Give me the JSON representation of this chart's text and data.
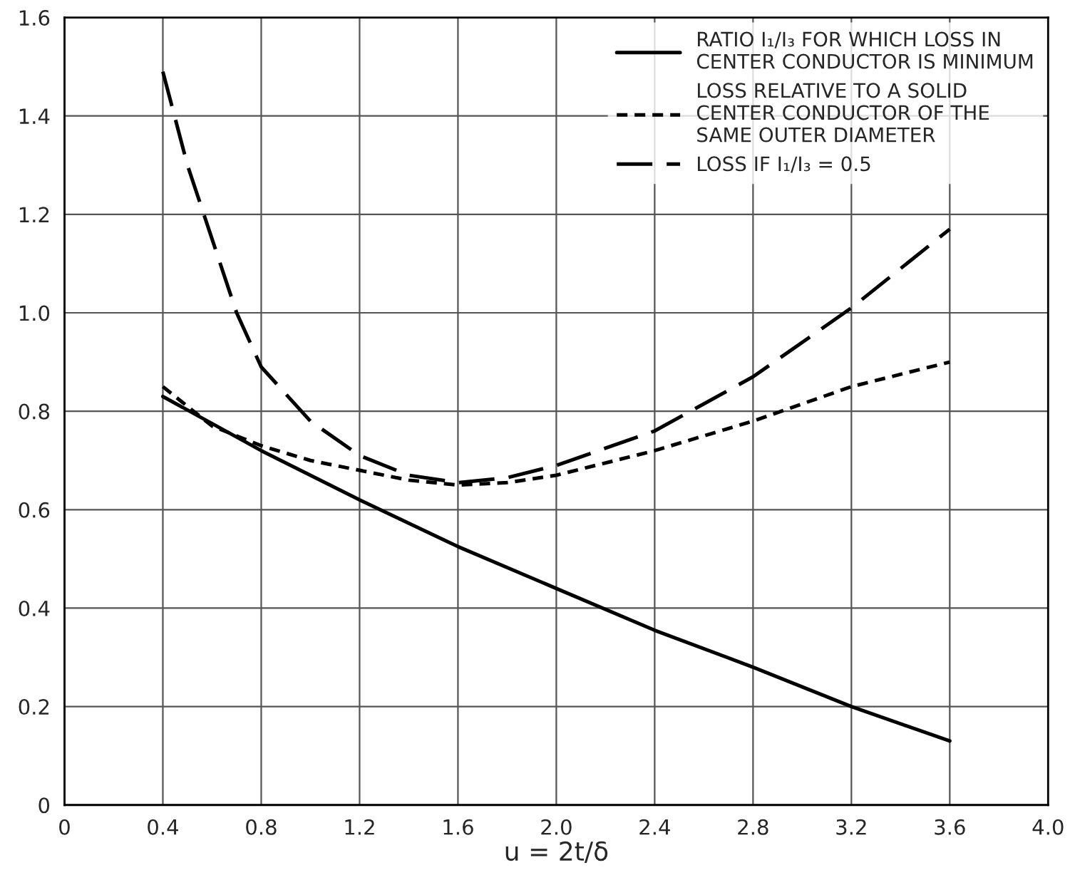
{
  "chart_data": {
    "type": "line",
    "xlabel": "u = 2t/δ",
    "xlim": [
      0,
      4.0
    ],
    "ylim": [
      0,
      1.6
    ],
    "xticks": [
      0,
      0.4,
      0.8,
      1.2,
      1.6,
      {
        "value": 2,
        "label": "2.0"
      },
      2.4,
      2.8,
      3.2,
      3.6,
      {
        "value": 4,
        "label": "4.0"
      }
    ],
    "yticks": [
      0,
      0.2,
      0.4,
      0.6,
      0.8,
      {
        "value": 1,
        "label": "1.0"
      },
      1.2,
      1.4,
      1.6
    ],
    "grid": true,
    "legend": "top right",
    "marker": "none",
    "series": [
      {
        "name": "RATIO I₁/I₃ FOR WHICH LOSS IN\nCENTER CONDUCTOR IS MINIMUM",
        "color": "#000000",
        "line_style": "solid",
        "x": [
          0.4,
          0.8,
          1.2,
          1.6,
          2.0,
          2.4,
          2.8,
          3.2,
          3.6
        ],
        "values": [
          0.83,
          0.72,
          0.62,
          0.525,
          0.44,
          0.355,
          0.28,
          0.2,
          0.13
        ]
      },
      {
        "name": "LOSS RELATIVE TO A SOLID\nCENTER CONDUCTOR OF THE\nSAME OUTER DIAMETER",
        "color": "#000000",
        "line_style": "dotted",
        "x": [
          0.4,
          0.6,
          0.8,
          1.0,
          1.2,
          1.4,
          1.6,
          1.8,
          2.0,
          2.4,
          2.8,
          3.2,
          3.6
        ],
        "values": [
          0.85,
          0.77,
          0.73,
          0.7,
          0.68,
          0.66,
          0.65,
          0.655,
          0.67,
          0.72,
          0.78,
          0.85,
          0.9
        ]
      },
      {
        "name": "LOSS IF I₁/I₃ = 0.5",
        "color": "#000000",
        "line_style": "dashed",
        "x": [
          0.4,
          0.5,
          0.6,
          0.7,
          0.8,
          1.0,
          1.2,
          1.4,
          1.6,
          1.8,
          2.0,
          2.4,
          2.8,
          3.2,
          3.6
        ],
        "values": [
          1.49,
          1.3,
          1.15,
          1.0,
          0.89,
          0.78,
          0.71,
          0.67,
          0.655,
          0.665,
          0.69,
          0.76,
          0.87,
          1.01,
          1.17
        ]
      }
    ]
  }
}
